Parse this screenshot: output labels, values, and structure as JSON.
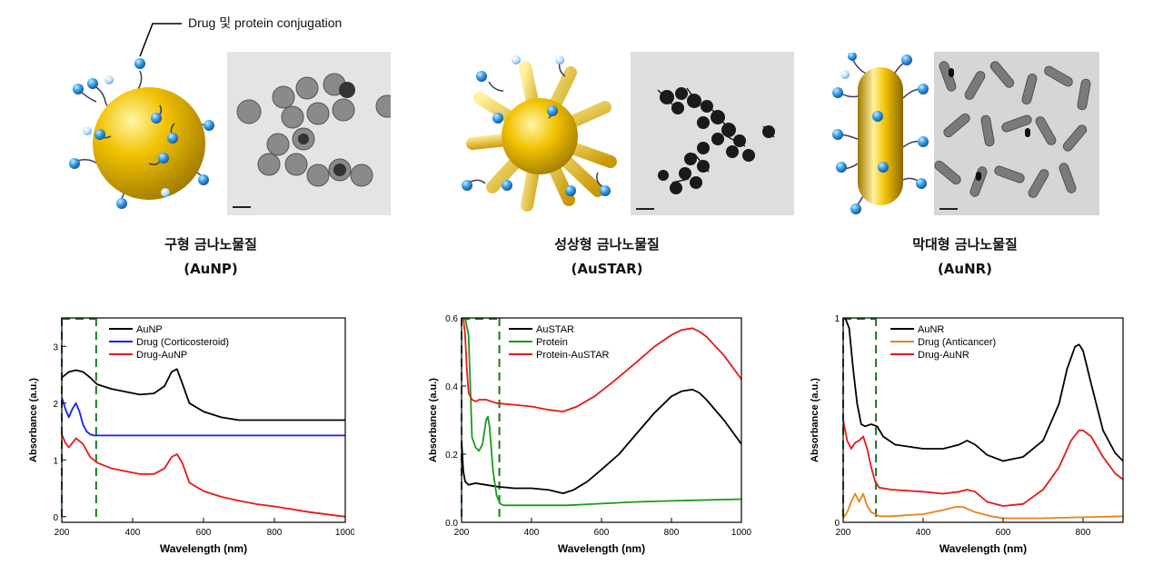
{
  "callout": "Drug 및 protein conjugation",
  "particles": [
    {
      "name_ko": "구형 금나노물질",
      "abbr": "(AuNP)"
    },
    {
      "name_ko": "성상형 금나노물질",
      "abbr": "(AuSTAR)"
    },
    {
      "name_ko": "막대형 금나노물질",
      "abbr": "(AuNR)"
    }
  ],
  "colors": {
    "gold": "#f2c200",
    "bead": "#3aa0e8",
    "black": "#000000",
    "blue": "#1a1aff",
    "red": "#e81818",
    "green": "#1a9a1a",
    "orange": "#e8821a",
    "marker": "#1a7a1a"
  },
  "chart_data": [
    {
      "type": "line",
      "xlabel": "Wavelength (nm)",
      "ylabel": "Absorbance (a.u.)",
      "xlim": [
        200,
        1000
      ],
      "ylim": [
        -0.1,
        3.5
      ],
      "xticks": [
        200,
        400,
        600,
        800,
        1000
      ],
      "yticks": [
        0,
        1,
        2,
        3
      ],
      "legend": "top-left",
      "marker_lines": [
        200,
        297
      ],
      "series": [
        {
          "name": "AuNP",
          "color": "#000000",
          "x": [
            200,
            220,
            240,
            260,
            280,
            300,
            340,
            380,
            420,
            460,
            490,
            510,
            525,
            540,
            560,
            600,
            650,
            700,
            800,
            900,
            1000
          ],
          "y": [
            2.45,
            2.55,
            2.58,
            2.55,
            2.45,
            2.33,
            2.25,
            2.2,
            2.15,
            2.17,
            2.3,
            2.55,
            2.6,
            2.35,
            2.0,
            1.85,
            1.75,
            1.7,
            1.7,
            1.7,
            1.7
          ]
        },
        {
          "name": "Drug (Corticosteroid)",
          "color": "#1a1aff",
          "x": [
            200,
            210,
            220,
            230,
            240,
            250,
            260,
            270,
            280,
            290,
            297,
            320,
            400,
            500,
            600,
            800,
            1000
          ],
          "y": [
            2.1,
            1.9,
            1.75,
            1.9,
            2.0,
            1.85,
            1.62,
            1.5,
            1.45,
            1.43,
            1.43,
            1.43,
            1.43,
            1.43,
            1.43,
            1.43,
            1.43
          ]
        },
        {
          "name": "Drug-AuNP",
          "color": "#e81818",
          "x": [
            200,
            210,
            220,
            240,
            260,
            280,
            300,
            340,
            380,
            420,
            460,
            490,
            510,
            525,
            540,
            560,
            600,
            650,
            700,
            750,
            800,
            900,
            1000
          ],
          "y": [
            1.45,
            1.3,
            1.22,
            1.38,
            1.28,
            1.05,
            0.95,
            0.85,
            0.8,
            0.75,
            0.75,
            0.85,
            1.05,
            1.1,
            0.95,
            0.6,
            0.45,
            0.35,
            0.28,
            0.22,
            0.18,
            0.08,
            0.0
          ]
        }
      ]
    },
    {
      "type": "line",
      "xlabel": "Wavelength (nm)",
      "ylabel": "Absorbance (a.u.)",
      "xlim": [
        200,
        1000
      ],
      "ylim": [
        0,
        0.6
      ],
      "xticks": [
        200,
        400,
        600,
        800,
        1000
      ],
      "yticks": [
        0.0,
        0.2,
        0.4,
        0.6
      ],
      "legend": "top-left",
      "marker_lines": [
        200,
        308
      ],
      "series": [
        {
          "name": "AuSTAR",
          "color": "#000000",
          "x": [
            200,
            205,
            210,
            220,
            240,
            270,
            300,
            350,
            400,
            450,
            490,
            520,
            560,
            600,
            650,
            700,
            750,
            800,
            830,
            860,
            880,
            900,
            950,
            1000
          ],
          "y": [
            0.24,
            0.15,
            0.12,
            0.11,
            0.115,
            0.11,
            0.105,
            0.1,
            0.1,
            0.095,
            0.085,
            0.095,
            0.12,
            0.155,
            0.2,
            0.26,
            0.32,
            0.37,
            0.385,
            0.39,
            0.38,
            0.36,
            0.3,
            0.23
          ]
        },
        {
          "name": "Protein",
          "color": "#1a9a1a",
          "x": [
            210,
            220,
            225,
            230,
            240,
            250,
            260,
            270,
            275,
            280,
            290,
            300,
            310,
            320,
            400,
            500,
            600,
            700,
            800,
            1000
          ],
          "y": [
            0.6,
            0.55,
            0.4,
            0.25,
            0.22,
            0.21,
            0.23,
            0.3,
            0.31,
            0.28,
            0.15,
            0.08,
            0.055,
            0.05,
            0.05,
            0.05,
            0.055,
            0.06,
            0.063,
            0.068
          ]
        },
        {
          "name": "Protein-AuSTAR",
          "color": "#e81818",
          "x": [
            205,
            210,
            215,
            220,
            230,
            240,
            250,
            270,
            300,
            350,
            400,
            450,
            490,
            530,
            580,
            630,
            700,
            750,
            800,
            830,
            860,
            880,
            900,
            950,
            1000
          ],
          "y": [
            0.6,
            0.55,
            0.45,
            0.38,
            0.36,
            0.355,
            0.36,
            0.36,
            0.35,
            0.345,
            0.34,
            0.33,
            0.325,
            0.34,
            0.37,
            0.41,
            0.47,
            0.515,
            0.55,
            0.565,
            0.57,
            0.56,
            0.545,
            0.49,
            0.42
          ]
        }
      ]
    },
    {
      "type": "line",
      "xlabel": "Wavelength (nm)",
      "ylabel": "Absorbance (a.u.)",
      "xlim": [
        200,
        900
      ],
      "ylim": [
        0,
        1
      ],
      "xticks": [
        200,
        400,
        600,
        800
      ],
      "yticks": [
        0,
        1
      ],
      "legend": "top-left",
      "marker_lines": [
        200,
        282
      ],
      "series": [
        {
          "name": "AuNR",
          "color": "#000000",
          "x": [
            205,
            215,
            225,
            235,
            245,
            255,
            270,
            285,
            300,
            330,
            400,
            450,
            490,
            510,
            530,
            560,
            600,
            650,
            700,
            740,
            760,
            780,
            790,
            800,
            820,
            850,
            880,
            900
          ],
          "y": [
            1.0,
            0.95,
            0.75,
            0.58,
            0.48,
            0.47,
            0.48,
            0.47,
            0.42,
            0.38,
            0.36,
            0.36,
            0.38,
            0.4,
            0.38,
            0.33,
            0.3,
            0.32,
            0.4,
            0.58,
            0.75,
            0.86,
            0.87,
            0.84,
            0.68,
            0.45,
            0.34,
            0.3
          ]
        },
        {
          "name": "Drug (Anticancer)",
          "color": "#e8821a",
          "x": [
            200,
            210,
            220,
            230,
            240,
            250,
            260,
            270,
            280,
            290,
            320,
            400,
            450,
            480,
            500,
            530,
            570,
            600,
            700,
            800,
            900
          ],
          "y": [
            0.02,
            0.05,
            0.1,
            0.14,
            0.1,
            0.14,
            0.08,
            0.05,
            0.04,
            0.03,
            0.03,
            0.04,
            0.06,
            0.075,
            0.075,
            0.05,
            0.03,
            0.02,
            0.02,
            0.025,
            0.03
          ]
        },
        {
          "name": "Drug-AuNR",
          "color": "#e81818",
          "x": [
            200,
            210,
            220,
            230,
            240,
            250,
            260,
            270,
            280,
            290,
            320,
            400,
            450,
            490,
            510,
            530,
            560,
            600,
            650,
            700,
            740,
            770,
            790,
            800,
            820,
            850,
            880,
            900
          ],
          "y": [
            0.5,
            0.4,
            0.36,
            0.39,
            0.4,
            0.42,
            0.36,
            0.27,
            0.2,
            0.17,
            0.16,
            0.15,
            0.14,
            0.15,
            0.16,
            0.15,
            0.1,
            0.08,
            0.09,
            0.16,
            0.27,
            0.4,
            0.45,
            0.45,
            0.42,
            0.32,
            0.24,
            0.21
          ]
        }
      ]
    }
  ]
}
